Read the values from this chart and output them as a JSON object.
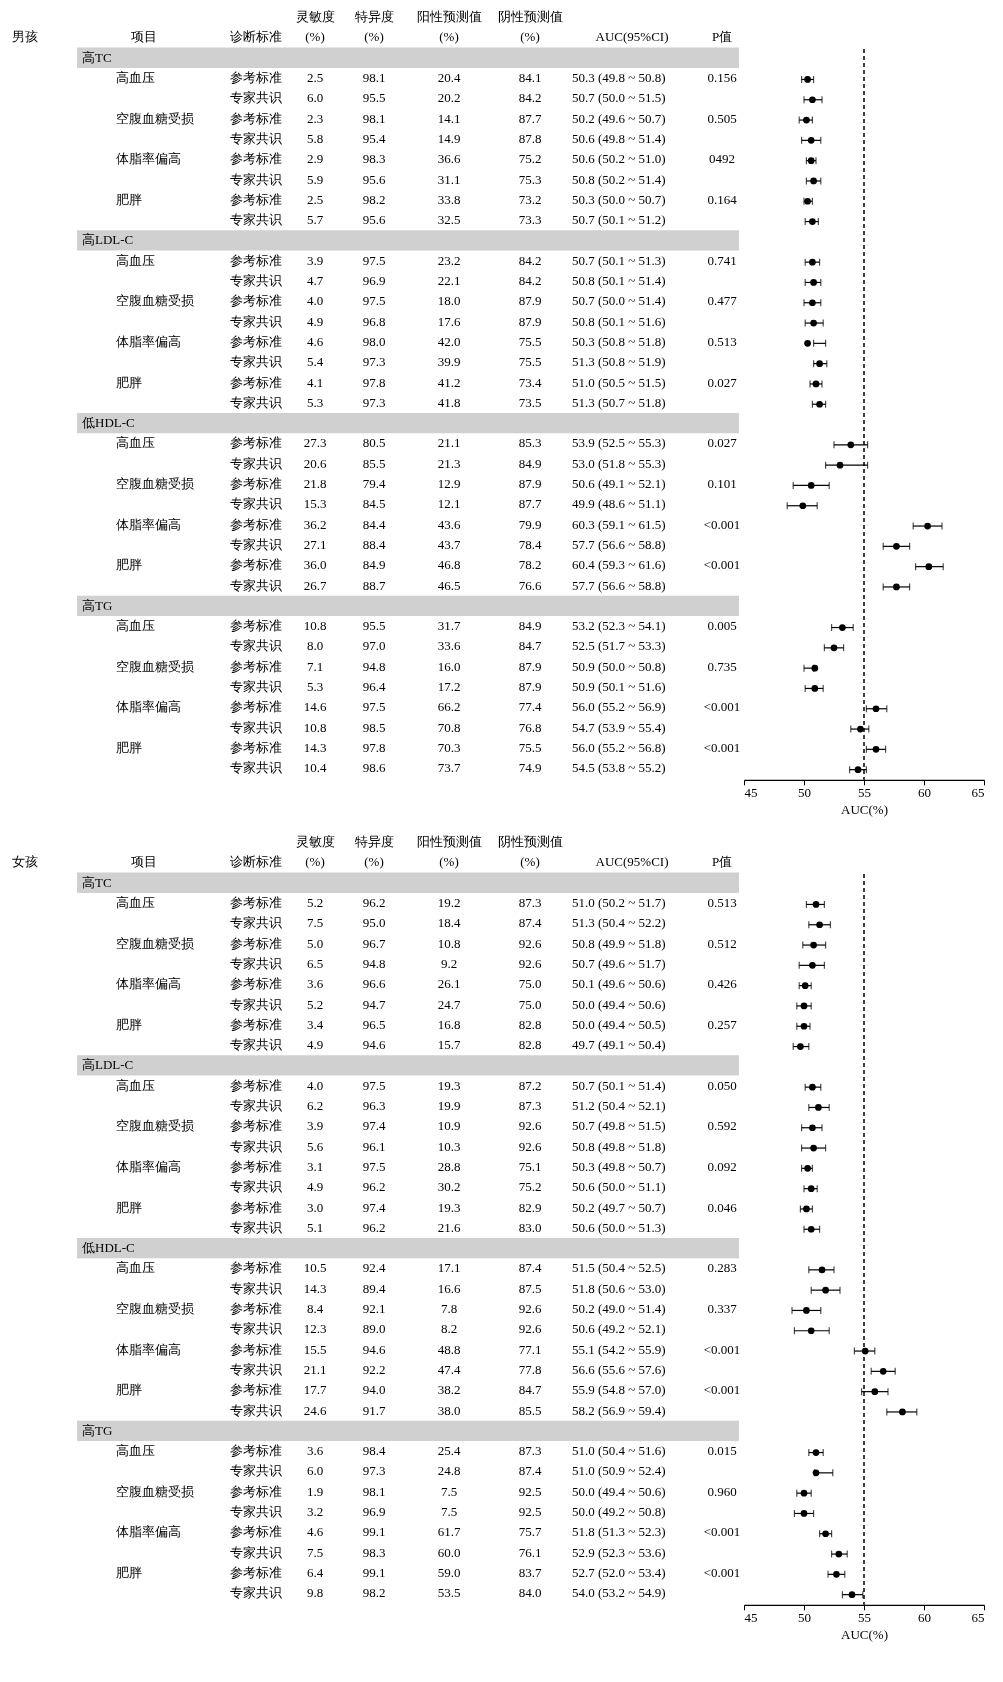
{
  "chart_data": [
    {
      "type": "other",
      "title": "男孩",
      "categories": [
        [
          "项目"
        ],
        [
          "诊断标准"
        ],
        [
          "灵敏度",
          "(%)"
        ],
        [
          "特异度",
          "(%)"
        ],
        [
          "阳性预测值",
          "(%)"
        ],
        [
          "阴性预测值",
          "(%)"
        ],
        [
          "AUC(95%CI)"
        ],
        [
          "P值"
        ]
      ],
      "cell_labels": [
        [
          "高TC"
        ],
        [
          "高血压",
          "参考标准",
          "2.5",
          "98.1",
          "20.4",
          "84.1",
          "50.3 (49.8 ~ 50.8)",
          "0.156"
        ],
        [
          null,
          "专家共识",
          "6.0",
          "95.5",
          "20.2",
          "84.2",
          "50.7 (50.0 ~ 51.5)",
          null
        ],
        [
          "空腹血糖受损",
          "参考标准",
          "2.3",
          "98.1",
          "14.1",
          "87.7",
          "50.2 (49.6 ~ 50.7)",
          "0.505"
        ],
        [
          null,
          "专家共识",
          "5.8",
          "95.4",
          "14.9",
          "87.8",
          "50.6 (49.8 ~ 51.4)",
          null
        ],
        [
          "体脂率偏高",
          "参考标准",
          "2.9",
          "98.3",
          "36.6",
          "75.2",
          "50.6 (50.2 ~ 51.0)",
          "0492"
        ],
        [
          null,
          "专家共识",
          "5.9",
          "95.6",
          "31.1",
          "75.3",
          "50.8 (50.2 ~ 51.4)",
          null
        ],
        [
          "肥胖",
          "参考标准",
          "2.5",
          "98.2",
          "33.8",
          "73.2",
          "50.3 (50.0 ~ 50.7)",
          "0.164"
        ],
        [
          null,
          "专家共识",
          "5.7",
          "95.6",
          "32.5",
          "73.3",
          "50.7 (50.1 ~ 51.2)",
          null
        ],
        [
          "高LDL-C"
        ],
        [
          "高血压",
          "参考标准",
          "3.9",
          "97.5",
          "23.2",
          "84.2",
          "50.7 (50.1 ~ 51.3)",
          "0.741"
        ],
        [
          null,
          "专家共识",
          "4.7",
          "96.9",
          "22.1",
          "84.2",
          "50.8 (50.1 ~ 51.4)",
          null
        ],
        [
          "空腹血糖受损",
          "参考标准",
          "4.0",
          "97.5",
          "18.0",
          "87.9",
          "50.7 (50.0 ~ 51.4)",
          "0.477"
        ],
        [
          null,
          "专家共识",
          "4.9",
          "96.8",
          "17.6",
          "87.9",
          "50.8 (50.1 ~ 51.6)",
          null
        ],
        [
          "体脂率偏高",
          "参考标准",
          "4.6",
          "98.0",
          "42.0",
          "75.5",
          "50.3 (50.8 ~ 51.8)",
          "0.513"
        ],
        [
          null,
          "专家共识",
          "5.4",
          "97.3",
          "39.9",
          "75.5",
          "51.3 (50.8 ~ 51.9)",
          null
        ],
        [
          "肥胖",
          "参考标准",
          "4.1",
          "97.8",
          "41.2",
          "73.4",
          "51.0 (50.5 ~ 51.5)",
          "0.027"
        ],
        [
          null,
          "专家共识",
          "5.3",
          "97.3",
          "41.8",
          "73.5",
          "51.3 (50.7 ~ 51.8)",
          null
        ],
        [
          "低HDL-C"
        ],
        [
          "高血压",
          "参考标准",
          "27.3",
          "80.5",
          "21.1",
          "85.3",
          "53.9 (52.5 ~ 55.3)",
          "0.027"
        ],
        [
          null,
          "专家共识",
          "20.6",
          "85.5",
          "21.3",
          "84.9",
          "53.0 (51.8 ~ 55.3)",
          null
        ],
        [
          "空腹血糖受损",
          "参考标准",
          "21.8",
          "79.4",
          "12.9",
          "87.9",
          "50.6 (49.1 ~ 52.1)",
          "0.101"
        ],
        [
          null,
          "专家共识",
          "15.3",
          "84.5",
          "12.1",
          "87.7",
          "49.9 (48.6 ~ 51.1)",
          null
        ],
        [
          "体脂率偏高",
          "参考标准",
          "36.2",
          "84.4",
          "43.6",
          "79.9",
          "60.3 (59.1 ~ 61.5)",
          "<0.001"
        ],
        [
          null,
          "专家共识",
          "27.1",
          "88.4",
          "43.7",
          "78.4",
          "57.7 (56.6 ~ 58.8)",
          null
        ],
        [
          "肥胖",
          "参考标准",
          "36.0",
          "84.9",
          "46.8",
          "78.2",
          "60.4 (59.3 ~ 61.6)",
          "<0.001"
        ],
        [
          null,
          "专家共识",
          "26.7",
          "88.7",
          "46.5",
          "76.6",
          "57.7 (56.6 ~ 58.8)",
          null
        ],
        [
          "高TG"
        ],
        [
          "高血压",
          "参考标准",
          "10.8",
          "95.5",
          "31.7",
          "84.9",
          "53.2 (52.3 ~ 54.1)",
          "0.005"
        ],
        [
          null,
          "专家共识",
          "8.0",
          "97.0",
          "33.6",
          "84.7",
          "52.5 (51.7 ~ 53.3)",
          null
        ],
        [
          "空腹血糖受损",
          "参考标准",
          "7.1",
          "94.8",
          "16.0",
          "87.9",
          "50.9 (50.0 ~ 50.8)",
          "0.735"
        ],
        [
          null,
          "专家共识",
          "5.3",
          "96.4",
          "17.2",
          "87.9",
          "50.9 (50.1 ~ 51.6)",
          null
        ],
        [
          "体脂率偏高",
          "参考标准",
          "14.6",
          "97.5",
          "66.2",
          "77.4",
          "56.0 (55.2 ~ 56.9)",
          "<0.001"
        ],
        [
          null,
          "专家共识",
          "10.8",
          "98.5",
          "70.8",
          "76.8",
          "54.7 (53.9 ~ 55.4)",
          null
        ],
        [
          "肥胖",
          "参考标准",
          "14.3",
          "97.8",
          "70.3",
          "75.5",
          "56.0 (55.2 ~ 56.8)",
          "<0.001"
        ],
        [
          null,
          "专家共识",
          "10.4",
          "98.6",
          "73.7",
          "74.9",
          "54.5 (53.8 ~ 55.2)",
          null
        ]
      ]
    },
    {
      "type": "scatter",
      "orientation": "horizontal",
      "categories": [
        null,
        null,
        null,
        null,
        null,
        null,
        null,
        null,
        null,
        null,
        null,
        null,
        null,
        null,
        null,
        null,
        null,
        null,
        null,
        null,
        null,
        null,
        null,
        null,
        null,
        null,
        null,
        null,
        null,
        null,
        null,
        null,
        null,
        null,
        null,
        null
      ],
      "series": [
        {
          "color": "#000000",
          "values": [
            null,
            50.3,
            50.7,
            50.2,
            50.6,
            50.6,
            50.8,
            50.3,
            50.7,
            null,
            50.7,
            50.8,
            50.7,
            50.8,
            50.3,
            51.3,
            51.0,
            51.3,
            null,
            53.9,
            53.0,
            50.6,
            49.9,
            60.3,
            57.7,
            60.4,
            57.7,
            null,
            53.2,
            52.5,
            50.9,
            50.9,
            56.0,
            54.7,
            56.0,
            54.5
          ],
          "errors": [
            null,
            [
              49.8,
              50.8
            ],
            [
              50.0,
              51.5
            ],
            [
              49.6,
              50.7
            ],
            [
              49.8,
              51.4
            ],
            [
              50.2,
              51.0
            ],
            [
              50.2,
              51.4
            ],
            [
              50.0,
              50.7
            ],
            [
              50.1,
              51.2
            ],
            null,
            [
              50.1,
              51.3
            ],
            [
              50.1,
              51.4
            ],
            [
              50.0,
              51.4
            ],
            [
              50.1,
              51.6
            ],
            [
              50.8,
              51.8
            ],
            [
              50.8,
              51.9
            ],
            [
              50.5,
              51.5
            ],
            [
              50.7,
              51.8
            ],
            null,
            [
              52.5,
              55.3
            ],
            [
              51.8,
              55.3
            ],
            [
              49.1,
              52.1
            ],
            [
              48.6,
              51.1
            ],
            [
              59.1,
              61.5
            ],
            [
              56.6,
              58.8
            ],
            [
              59.3,
              61.6
            ],
            [
              56.6,
              58.8
            ],
            null,
            [
              52.3,
              54.1
            ],
            [
              51.7,
              53.3
            ],
            [
              50.0,
              50.8
            ],
            [
              50.1,
              51.6
            ],
            [
              55.2,
              56.9
            ],
            [
              53.9,
              55.4
            ],
            [
              55.2,
              56.8
            ],
            [
              53.8,
              55.2
            ]
          ]
        }
      ],
      "marker": "circle",
      "xlim": [
        45,
        65
      ],
      "xticks": [
        45,
        50,
        55,
        60,
        65
      ],
      "xlabel": "AUC(%)",
      "tick_labels": "x",
      "ref_lines": [
        {
          "axis": "x",
          "value": 55,
          "color": "#000000",
          "line_style": "dashed"
        }
      ]
    },
    {
      "type": "other",
      "title": "女孩",
      "categories": [
        [
          "项目"
        ],
        [
          "诊断标准"
        ],
        [
          "灵敏度",
          "(%)"
        ],
        [
          "特异度",
          "(%)"
        ],
        [
          "阳性预测值",
          "(%)"
        ],
        [
          "阴性预测值",
          "(%)"
        ],
        [
          "AUC(95%CI)"
        ],
        [
          "P值"
        ]
      ],
      "cell_labels": [
        [
          "高TC"
        ],
        [
          "高血压",
          "参考标准",
          "5.2",
          "96.2",
          "19.2",
          "87.3",
          "51.0 (50.2 ~ 51.7)",
          "0.513"
        ],
        [
          null,
          "专家共识",
          "7.5",
          "95.0",
          "18.4",
          "87.4",
          "51.3 (50.4 ~ 52.2)",
          null
        ],
        [
          "空腹血糖受损",
          "参考标准",
          "5.0",
          "96.7",
          "10.8",
          "92.6",
          "50.8 (49.9 ~ 51.8)",
          "0.512"
        ],
        [
          null,
          "专家共识",
          "6.5",
          "94.8",
          "9.2",
          "92.6",
          "50.7 (49.6 ~ 51.7)",
          null
        ],
        [
          "体脂率偏高",
          "参考标准",
          "3.6",
          "96.6",
          "26.1",
          "75.0",
          "50.1 (49.6 ~ 50.6)",
          "0.426"
        ],
        [
          null,
          "专家共识",
          "5.2",
          "94.7",
          "24.7",
          "75.0",
          "50.0 (49.4 ~ 50.6)",
          null
        ],
        [
          "肥胖",
          "参考标准",
          "3.4",
          "96.5",
          "16.8",
          "82.8",
          "50.0 (49.4 ~ 50.5)",
          "0.257"
        ],
        [
          null,
          "专家共识",
          "4.9",
          "94.6",
          "15.7",
          "82.8",
          "49.7 (49.1 ~ 50.4)",
          null
        ],
        [
          "高LDL-C"
        ],
        [
          "高血压",
          "参考标准",
          "4.0",
          "97.5",
          "19.3",
          "87.2",
          "50.7 (50.1 ~ 51.4)",
          "0.050"
        ],
        [
          null,
          "专家共识",
          "6.2",
          "96.3",
          "19.9",
          "87.3",
          "51.2 (50.4 ~ 52.1)",
          null
        ],
        [
          "空腹血糖受损",
          "参考标准",
          "3.9",
          "97.4",
          "10.9",
          "92.6",
          "50.7 (49.8 ~ 51.5)",
          "0.592"
        ],
        [
          null,
          "专家共识",
          "5.6",
          "96.1",
          "10.3",
          "92.6",
          "50.8 (49.8 ~ 51.8)",
          null
        ],
        [
          "体脂率偏高",
          "参考标准",
          "3.1",
          "97.5",
          "28.8",
          "75.1",
          "50.3 (49.8 ~ 50.7)",
          "0.092"
        ],
        [
          null,
          "专家共识",
          "4.9",
          "96.2",
          "30.2",
          "75.2",
          "50.6 (50.0 ~ 51.1)",
          null
        ],
        [
          "肥胖",
          "参考标准",
          "3.0",
          "97.4",
          "19.3",
          "82.9",
          "50.2 (49.7 ~ 50.7)",
          "0.046"
        ],
        [
          null,
          "专家共识",
          "5.1",
          "96.2",
          "21.6",
          "83.0",
          "50.6 (50.0 ~ 51.3)",
          null
        ],
        [
          "低HDL-C"
        ],
        [
          "高血压",
          "参考标准",
          "10.5",
          "92.4",
          "17.1",
          "87.4",
          "51.5 (50.4 ~ 52.5)",
          "0.283"
        ],
        [
          null,
          "专家共识",
          "14.3",
          "89.4",
          "16.6",
          "87.5",
          "51.8 (50.6 ~ 53.0)",
          null
        ],
        [
          "空腹血糖受损",
          "参考标准",
          "8.4",
          "92.1",
          "7.8",
          "92.6",
          "50.2 (49.0 ~ 51.4)",
          "0.337"
        ],
        [
          null,
          "专家共识",
          "12.3",
          "89.0",
          "8.2",
          "92.6",
          "50.6 (49.2 ~ 52.1)",
          null
        ],
        [
          "体脂率偏高",
          "参考标准",
          "15.5",
          "94.6",
          "48.8",
          "77.1",
          "55.1 (54.2 ~ 55.9)",
          "<0.001"
        ],
        [
          null,
          "专家共识",
          "21.1",
          "92.2",
          "47.4",
          "77.8",
          "56.6 (55.6 ~ 57.6)",
          null
        ],
        [
          "肥胖",
          "参考标准",
          "17.7",
          "94.0",
          "38.2",
          "84.7",
          "55.9 (54.8 ~ 57.0)",
          "<0.001"
        ],
        [
          null,
          "专家共识",
          "24.6",
          "91.7",
          "38.0",
          "85.5",
          "58.2 (56.9 ~ 59.4)",
          null
        ],
        [
          "高TG"
        ],
        [
          "高血压",
          "参考标准",
          "3.6",
          "98.4",
          "25.4",
          "87.3",
          "51.0 (50.4 ~ 51.6)",
          "0.015"
        ],
        [
          null,
          "专家共识",
          "6.0",
          "97.3",
          "24.8",
          "87.4",
          "51.0 (50.9 ~ 52.4)",
          null
        ],
        [
          "空腹血糖受损",
          "参考标准",
          "1.9",
          "98.1",
          "7.5",
          "92.5",
          "50.0 (49.4 ~ 50.6)",
          "0.960"
        ],
        [
          null,
          "专家共识",
          "3.2",
          "96.9",
          "7.5",
          "92.5",
          "50.0 (49.2 ~ 50.8)",
          null
        ],
        [
          "体脂率偏高",
          "参考标准",
          "4.6",
          "99.1",
          "61.7",
          "75.7",
          "51.8 (51.3 ~ 52.3)",
          "<0.001"
        ],
        [
          null,
          "专家共识",
          "7.5",
          "98.3",
          "60.0",
          "76.1",
          "52.9 (52.3 ~ 53.6)",
          null
        ],
        [
          "肥胖",
          "参考标准",
          "6.4",
          "99.1",
          "59.0",
          "83.7",
          "52.7 (52.0 ~ 53.4)",
          "<0.001"
        ],
        [
          null,
          "专家共识",
          "9.8",
          "98.2",
          "53.5",
          "84.0",
          "54.0 (53.2 ~ 54.9)",
          null
        ]
      ]
    },
    {
      "type": "scatter",
      "orientation": "horizontal",
      "categories": [
        null,
        null,
        null,
        null,
        null,
        null,
        null,
        null,
        null,
        null,
        null,
        null,
        null,
        null,
        null,
        null,
        null,
        null,
        null,
        null,
        null,
        null,
        null,
        null,
        null,
        null,
        null,
        null,
        null,
        null,
        null,
        null,
        null,
        null,
        null,
        null
      ],
      "series": [
        {
          "color": "#000000",
          "values": [
            null,
            51.0,
            51.3,
            50.8,
            50.7,
            50.1,
            50.0,
            50.0,
            49.7,
            null,
            50.7,
            51.2,
            50.7,
            50.8,
            50.3,
            50.6,
            50.2,
            50.6,
            null,
            51.5,
            51.8,
            50.2,
            50.6,
            55.1,
            56.6,
            55.9,
            58.2,
            null,
            51.0,
            51.0,
            50.0,
            50.0,
            51.8,
            52.9,
            52.7,
            54.0
          ],
          "errors": [
            null,
            [
              50.2,
              51.7
            ],
            [
              50.4,
              52.2
            ],
            [
              49.9,
              51.8
            ],
            [
              49.6,
              51.7
            ],
            [
              49.6,
              50.6
            ],
            [
              49.4,
              50.6
            ],
            [
              49.4,
              50.5
            ],
            [
              49.1,
              50.4
            ],
            null,
            [
              50.1,
              51.4
            ],
            [
              50.4,
              52.1
            ],
            [
              49.8,
              51.5
            ],
            [
              49.8,
              51.8
            ],
            [
              49.8,
              50.7
            ],
            [
              50.0,
              51.1
            ],
            [
              49.7,
              50.7
            ],
            [
              50.0,
              51.3
            ],
            null,
            [
              50.4,
              52.5
            ],
            [
              50.6,
              53.0
            ],
            [
              49.0,
              51.4
            ],
            [
              49.2,
              52.1
            ],
            [
              54.2,
              55.9
            ],
            [
              55.6,
              57.6
            ],
            [
              54.8,
              57.0
            ],
            [
              56.9,
              59.4
            ],
            null,
            [
              50.4,
              51.6
            ],
            [
              50.9,
              52.4
            ],
            [
              49.4,
              50.6
            ],
            [
              49.2,
              50.8
            ],
            [
              51.3,
              52.3
            ],
            [
              52.3,
              53.6
            ],
            [
              52.0,
              53.4
            ],
            [
              53.2,
              54.9
            ]
          ]
        }
      ],
      "marker": "circle",
      "xlim": [
        45,
        65
      ],
      "xticks": [
        45,
        50,
        55,
        60,
        65
      ],
      "xlabel": "AUC(%)",
      "tick_labels": "x",
      "ref_lines": [
        {
          "axis": "x",
          "value": 55,
          "color": "#000000",
          "line_style": "dashed"
        }
      ]
    }
  ]
}
